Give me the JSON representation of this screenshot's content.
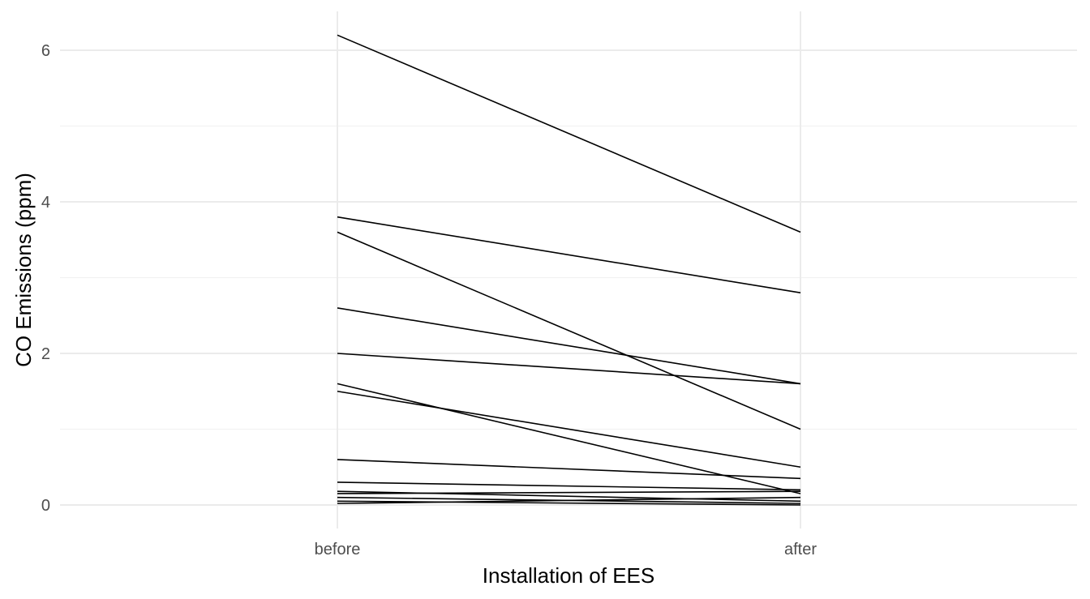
{
  "chart_data": {
    "type": "line",
    "title": "",
    "xlabel": "Installation of EES",
    "ylabel": "CO Emissions (ppm)",
    "categories": [
      "before",
      "after"
    ],
    "y_ticks": [
      0,
      2,
      4,
      6
    ],
    "y_minor_ticks": [
      1,
      3,
      5
    ],
    "ylim": [
      -0.3,
      6.5
    ],
    "grid": true,
    "legend": "none",
    "line_color": "#000000",
    "grid_color": "#ebebeb",
    "pairs": [
      [
        6.2,
        3.6
      ],
      [
        3.8,
        2.8
      ],
      [
        3.6,
        1.0
      ],
      [
        2.6,
        1.6
      ],
      [
        2.0,
        1.6
      ],
      [
        1.6,
        0.15
      ],
      [
        1.5,
        0.5
      ],
      [
        0.6,
        0.35
      ],
      [
        0.3,
        0.2
      ],
      [
        0.18,
        0.05
      ],
      [
        0.15,
        0.18
      ],
      [
        0.1,
        0.02
      ],
      [
        0.05,
        0.0
      ],
      [
        0.02,
        0.1
      ]
    ]
  }
}
